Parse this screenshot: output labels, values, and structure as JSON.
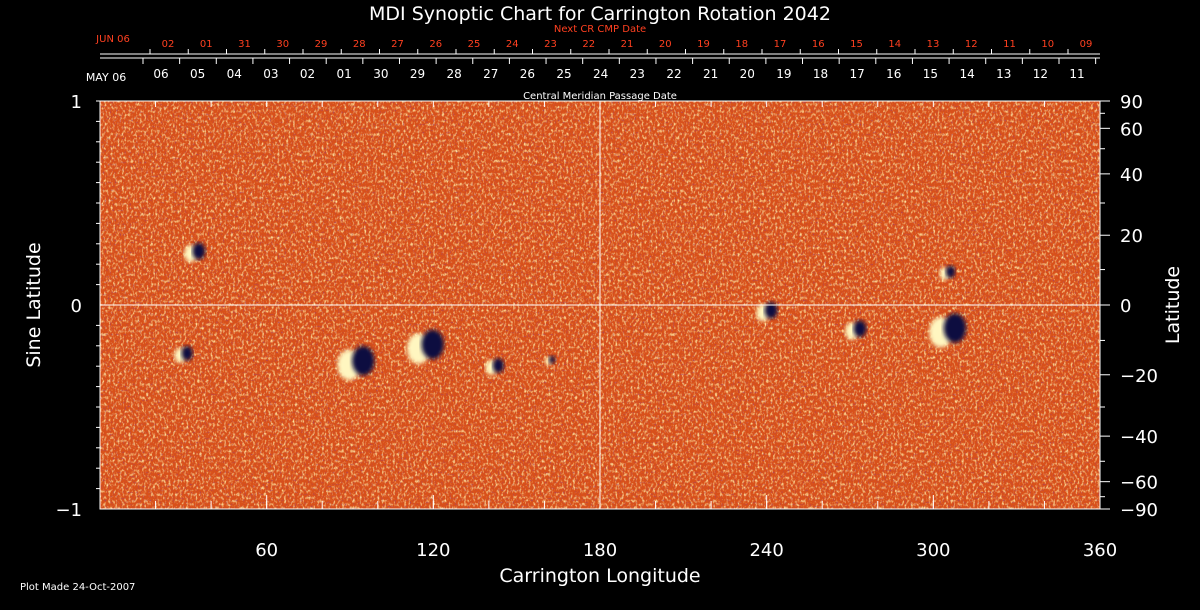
{
  "title": "MDI Synoptic Chart for Carrington Rotation 2042",
  "top_axis": {
    "start_label": "JUN 06",
    "caption": "Next CR CMP Date",
    "labels": [
      "02",
      "01",
      "31",
      "30",
      "29",
      "28",
      "27",
      "26",
      "25",
      "24",
      "23",
      "22",
      "21",
      "20",
      "19",
      "18",
      "17",
      "16",
      "15",
      "14",
      "13",
      "12",
      "11",
      "10",
      "09"
    ]
  },
  "mid_axis": {
    "start_label": "MAY 06",
    "caption": "Central Meridian Passage Date",
    "labels": [
      "06",
      "05",
      "04",
      "03",
      "02",
      "01",
      "30",
      "29",
      "28",
      "27",
      "26",
      "25",
      "24",
      "23",
      "22",
      "21",
      "20",
      "19",
      "18",
      "17",
      "16",
      "15",
      "14",
      "13",
      "12",
      "11"
    ]
  },
  "footer": "Plot Made 24-Oct-2007",
  "colors": {
    "background": "#000000",
    "top_axis": "#ff4020",
    "map_base": "#d8501a",
    "positive": "#ffe080",
    "negative": "#0a0a40",
    "grid": "#ffffff"
  },
  "chart_data": {
    "type": "heatmap",
    "title": "MDI Synoptic Chart for Carrington Rotation 2042",
    "xlabel": "Carrington Longitude",
    "ylabel_left": "Sine Latitude",
    "ylabel_right": "Latitude",
    "xlim": [
      0,
      360
    ],
    "ylim": [
      -1,
      1
    ],
    "x_ticks": [
      60,
      120,
      180,
      240,
      300,
      360
    ],
    "y_ticks_left": [
      "1",
      "0",
      "−1"
    ],
    "y_ticks_right": [
      "90",
      "60",
      "40",
      "20",
      "0",
      "−20",
      "−40",
      "−60",
      "−90"
    ],
    "y_ticks_right_values": [
      90,
      60,
      40,
      20,
      0,
      -20,
      -40,
      -60,
      -90
    ],
    "grid": "central meridian and equator lines",
    "active_regions": [
      {
        "lon": 34,
        "sinlat": 0.26,
        "extent": 8
      },
      {
        "lon": 30,
        "sinlat": -0.24,
        "extent": 7
      },
      {
        "lon": 92,
        "sinlat": -0.28,
        "extent": 14
      },
      {
        "lon": 117,
        "sinlat": -0.2,
        "extent": 14
      },
      {
        "lon": 142,
        "sinlat": -0.3,
        "extent": 7
      },
      {
        "lon": 162,
        "sinlat": -0.27,
        "extent": 4
      },
      {
        "lon": 240,
        "sinlat": -0.03,
        "extent": 8
      },
      {
        "lon": 272,
        "sinlat": -0.12,
        "extent": 8
      },
      {
        "lon": 305,
        "sinlat": -0.12,
        "extent": 14
      },
      {
        "lon": 305,
        "sinlat": 0.16,
        "extent": 6
      }
    ]
  }
}
